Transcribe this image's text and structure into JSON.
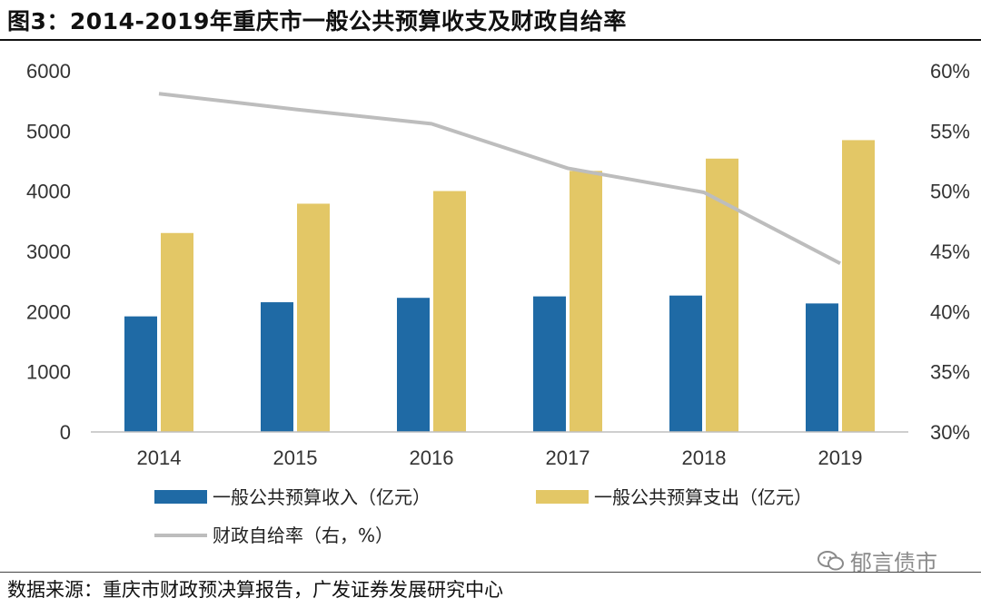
{
  "figure": {
    "title": "图3：2014-2019年重庆市一般公共预算收支及财政自给率",
    "source": "数据来源：重庆市财政预决算报告，广发证券发展研究中心",
    "watermark": "郁言债市"
  },
  "chart_data": {
    "type": "bar",
    "categories": [
      "2014",
      "2015",
      "2016",
      "2017",
      "2018",
      "2019"
    ],
    "series": [
      {
        "name": "一般公共预算收入（亿元）",
        "type": "bar",
        "axis": "left",
        "color": "#1f6aa5",
        "values": [
          1920,
          2155,
          2228,
          2252,
          2266,
          2135
        ]
      },
      {
        "name": "一般公共预算支出（亿元）",
        "type": "bar",
        "axis": "left",
        "color": "#e3c766",
        "values": [
          3305,
          3792,
          4002,
          4337,
          4541,
          4848
        ]
      },
      {
        "name": "财政自给率（右，%）",
        "type": "line",
        "axis": "right",
        "color": "#bdbdbd",
        "values": [
          58.1,
          56.8,
          55.6,
          51.9,
          49.9,
          44.0
        ]
      }
    ],
    "ylim": [
      0,
      6000
    ],
    "yticks": [
      "0",
      "1000",
      "2000",
      "3000",
      "4000",
      "5000",
      "6000"
    ],
    "y2lim": [
      30,
      60
    ],
    "y2ticks": [
      "30%",
      "35%",
      "40%",
      "45%",
      "50%",
      "55%",
      "60%"
    ],
    "legend_position": "bottom"
  }
}
